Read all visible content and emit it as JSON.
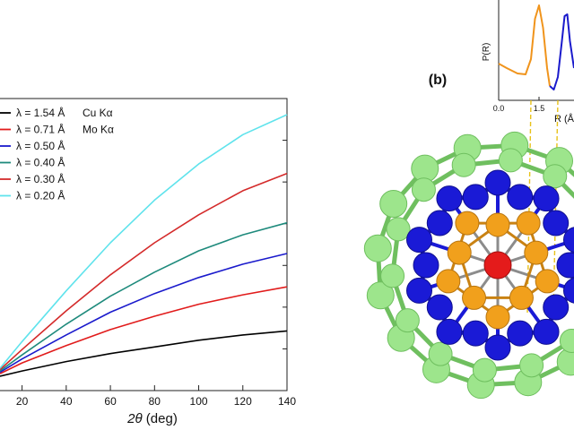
{
  "chart_data": [
    {
      "type": "line",
      "xlabel_symbol": "2θ",
      "xlabel_unit": " (deg)",
      "xlim": [
        10,
        140
      ],
      "xticks": [
        20,
        40,
        60,
        80,
        100,
        120,
        140
      ],
      "ylim": [
        0,
        1
      ],
      "grid": false,
      "legend_position": "top-left",
      "series": [
        {
          "name": "λ = 1.54 Å",
          "annotation": "Cu Kα",
          "color": "#000000",
          "x": [
            10,
            20,
            40,
            60,
            80,
            100,
            120,
            140
          ],
          "y": [
            0.02,
            0.04,
            0.075,
            0.105,
            0.13,
            0.155,
            0.175,
            0.19
          ]
        },
        {
          "name": "λ = 0.71 Å",
          "annotation": "Mo Kα",
          "color": "#e11b1b",
          "x": [
            10,
            20,
            40,
            60,
            80,
            100,
            120,
            140
          ],
          "y": [
            0.03,
            0.07,
            0.135,
            0.195,
            0.245,
            0.29,
            0.325,
            0.355
          ]
        },
        {
          "name": "λ = 0.50 Å",
          "annotation": "",
          "color": "#1a1acc",
          "x": [
            10,
            20,
            40,
            60,
            80,
            100,
            120,
            140
          ],
          "y": [
            0.035,
            0.085,
            0.175,
            0.26,
            0.33,
            0.39,
            0.44,
            0.48
          ]
        },
        {
          "name": "λ = 0.40 Å",
          "annotation": "",
          "color": "#1e8a7c",
          "x": [
            10,
            20,
            40,
            60,
            80,
            100,
            120,
            140
          ],
          "y": [
            0.04,
            0.1,
            0.215,
            0.32,
            0.41,
            0.49,
            0.55,
            0.595
          ]
        },
        {
          "name": "λ = 0.30 Å",
          "annotation": "",
          "color": "#d42a2a",
          "x": [
            10,
            20,
            40,
            60,
            80,
            100,
            120,
            140
          ],
          "y": [
            0.045,
            0.12,
            0.265,
            0.4,
            0.52,
            0.625,
            0.715,
            0.78
          ]
        },
        {
          "name": "λ = 0.20 Å",
          "annotation": "",
          "color": "#5fe3ec",
          "x": [
            10,
            20,
            40,
            60,
            80,
            100,
            120,
            140
          ],
          "y": [
            0.05,
            0.15,
            0.34,
            0.52,
            0.68,
            0.815,
            0.925,
            1.0
          ]
        }
      ]
    },
    {
      "type": "line",
      "panel_label": "(b)",
      "ylabel": "P(R)",
      "xlabel": "R (Å",
      "xlim": [
        0,
        2.8
      ],
      "xticks": [
        "0.0",
        "1.5"
      ],
      "grid": false,
      "series": [
        {
          "name": "",
          "color": "#f0941c",
          "x": [
            0.0,
            0.3,
            0.7,
            1.0,
            1.2,
            1.35,
            1.5,
            1.65,
            1.8,
            1.9
          ],
          "y": [
            0.35,
            0.3,
            0.24,
            0.23,
            0.4,
            0.85,
            1.0,
            0.75,
            0.3,
            0.1
          ]
        },
        {
          "name": "",
          "color": "#1a1acc",
          "x": [
            1.9,
            2.05,
            2.2,
            2.35,
            2.45,
            2.55,
            2.65,
            2.8
          ],
          "y": [
            0.1,
            0.06,
            0.2,
            0.6,
            0.88,
            0.9,
            0.6,
            0.3
          ]
        }
      ]
    }
  ],
  "molecule": {
    "center_color": "#e41b1b",
    "inner_shell_color": "#f1a01c",
    "middle_shell_color": "#1a1ad6",
    "outer_cage_color": "#9de58c",
    "guide_line_color": "#e8c21a"
  }
}
